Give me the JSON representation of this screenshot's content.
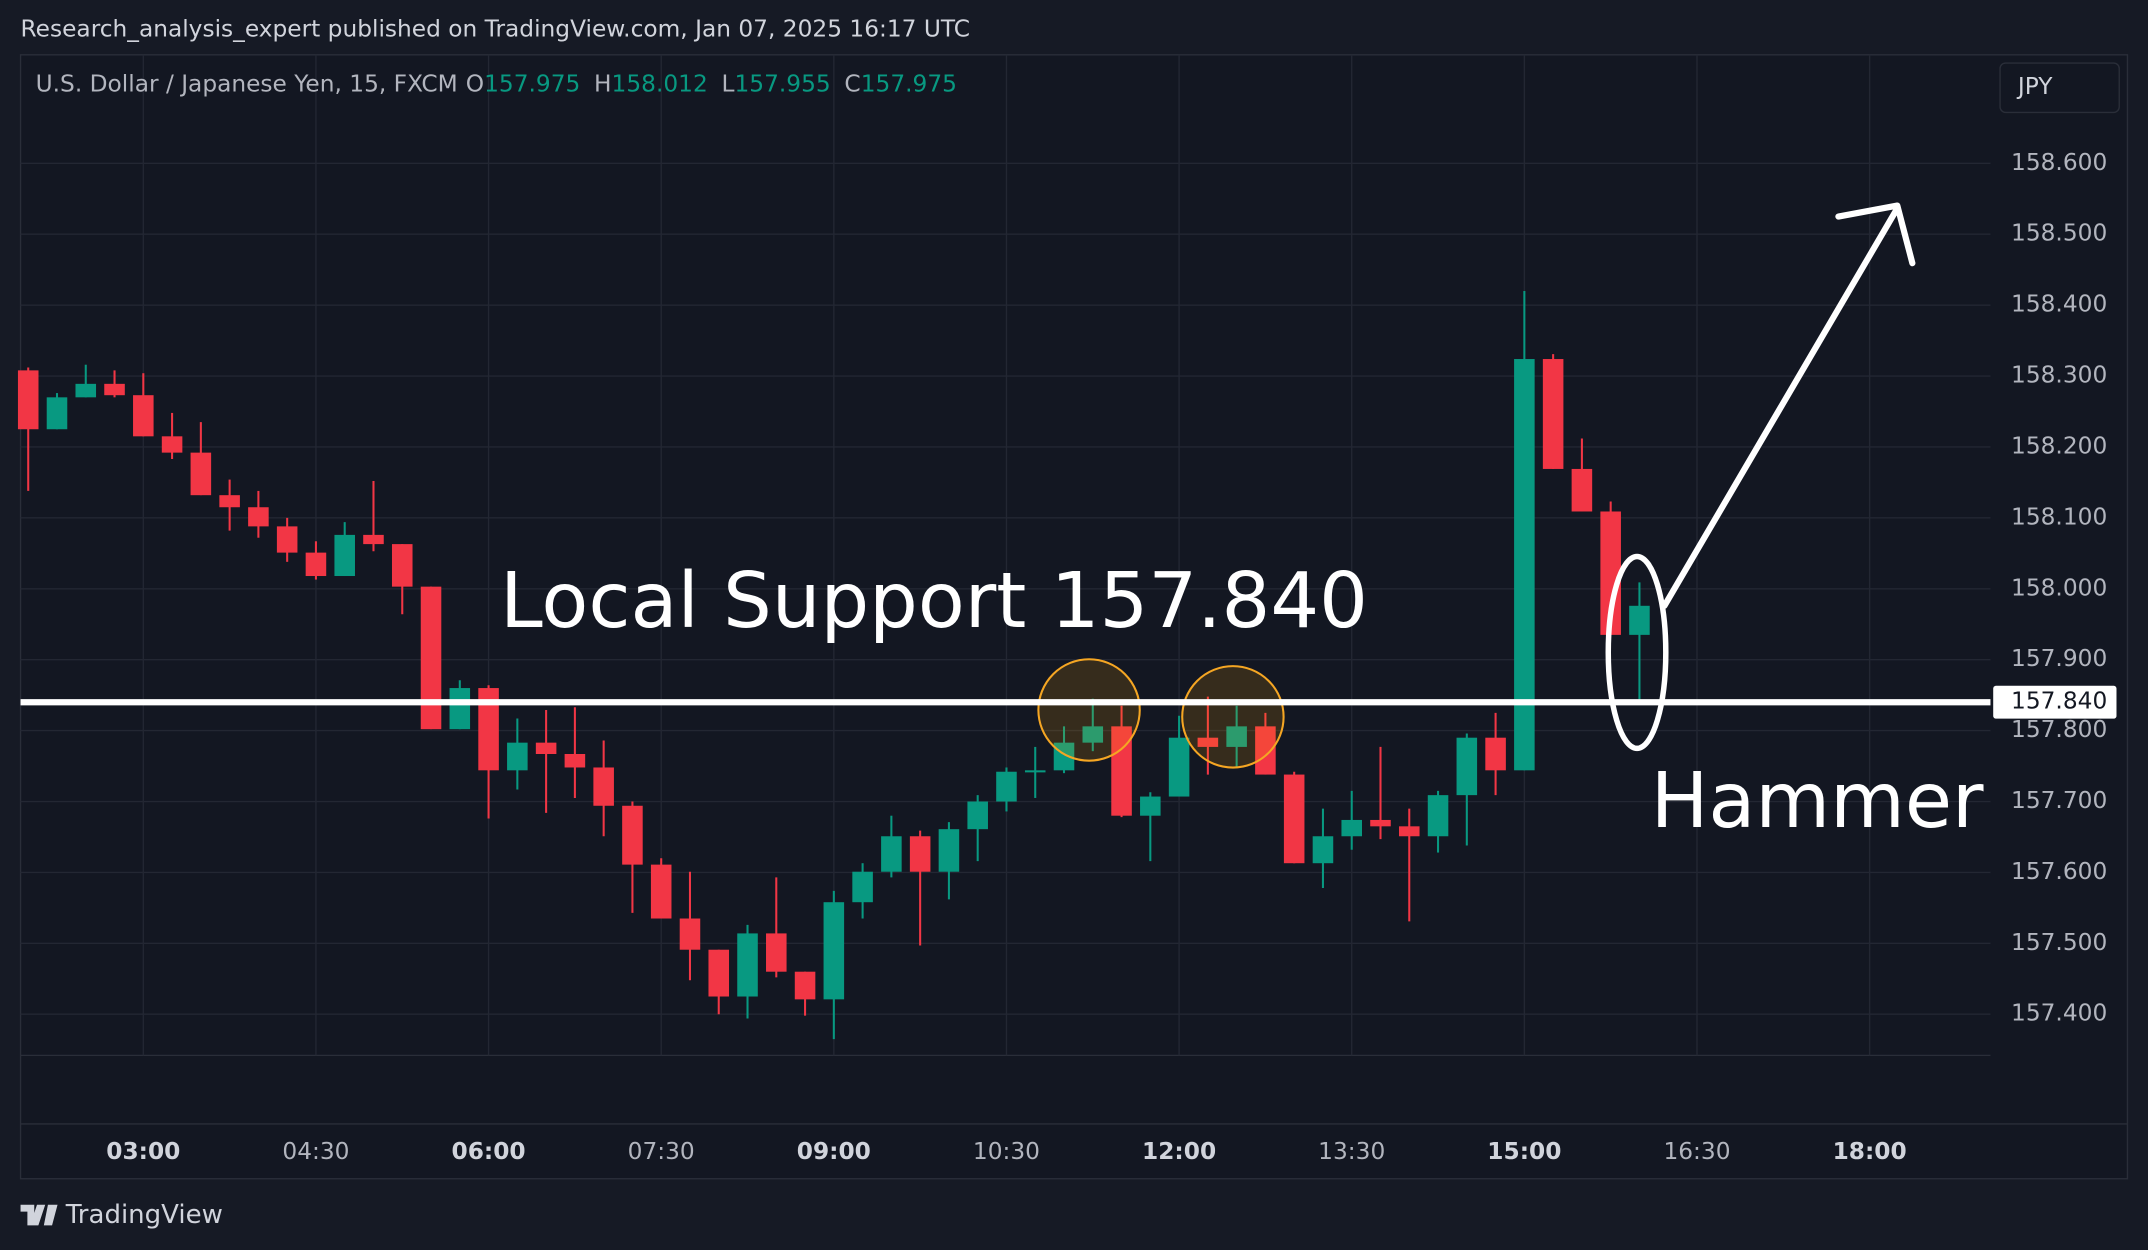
{
  "header": {
    "publisher": "Research_analysis_expert published on TradingView.com, Jan 07, 2025 16:17 UTC"
  },
  "footer": {
    "brand": "TradingView"
  },
  "chart_data": {
    "type": "candlestick",
    "symbol": "U.S. Dollar / Japanese Yen, 15, FXCM",
    "currency": "JPY",
    "ohlc_legend": [
      {
        "label": "O",
        "value": 157.975
      },
      {
        "label": "H",
        "value": 158.012
      },
      {
        "label": "L",
        "value": 157.955
      },
      {
        "label": "C",
        "value": 157.975
      }
    ],
    "up_color": "#089981",
    "down_color": "#f23645",
    "x": [
      120,
      135,
      150,
      165,
      180,
      195,
      210,
      225,
      240,
      255,
      270,
      285,
      300,
      315,
      330,
      345,
      360,
      375,
      390,
      405,
      420,
      435,
      450,
      465,
      480,
      495,
      510,
      525,
      540,
      555,
      570,
      585,
      600,
      615,
      630,
      645,
      660,
      675,
      690,
      705,
      720,
      735,
      750,
      765,
      780,
      795,
      810,
      825,
      840,
      855,
      870,
      885,
      900,
      915,
      930,
      945,
      960
    ],
    "open": [
      158.308,
      158.225,
      158.27,
      158.289,
      158.273,
      158.215,
      158.192,
      158.132,
      158.115,
      158.088,
      158.051,
      158.018,
      158.076,
      158.063,
      158.003,
      157.802,
      157.86,
      157.744,
      157.783,
      157.767,
      157.748,
      157.694,
      157.611,
      157.535,
      157.491,
      157.425,
      157.514,
      157.46,
      157.421,
      157.558,
      157.601,
      157.651,
      157.601,
      157.661,
      157.7,
      157.742,
      157.744,
      157.783,
      157.806,
      157.68,
      157.707,
      157.79,
      157.777,
      157.806,
      157.738,
      157.613,
      157.651,
      157.674,
      157.665,
      157.651,
      157.709,
      157.79,
      157.744,
      158.324,
      158.169,
      158.109,
      157.935
    ],
    "high": [
      158.312,
      158.276,
      158.316,
      158.308,
      158.304,
      158.248,
      158.235,
      158.154,
      158.138,
      158.1,
      158.067,
      158.094,
      158.152,
      158.063,
      158.003,
      157.871,
      157.864,
      157.817,
      157.829,
      157.833,
      157.786,
      157.7,
      157.62,
      157.601,
      157.491,
      157.526,
      157.593,
      157.46,
      157.574,
      157.613,
      157.68,
      157.659,
      157.671,
      157.709,
      157.748,
      157.777,
      157.806,
      157.845,
      157.835,
      157.713,
      157.821,
      157.848,
      157.835,
      157.825,
      157.742,
      157.69,
      157.715,
      157.777,
      157.69,
      157.715,
      157.796,
      157.825,
      158.42,
      158.331,
      158.212,
      158.123,
      158.009
    ],
    "low": [
      158.138,
      158.225,
      158.27,
      158.27,
      158.215,
      158.183,
      158.132,
      158.082,
      158.072,
      158.038,
      158.013,
      158.018,
      158.053,
      157.964,
      157.802,
      157.802,
      157.676,
      157.717,
      157.684,
      157.705,
      157.651,
      157.543,
      157.535,
      157.448,
      157.4,
      157.394,
      157.452,
      157.398,
      157.365,
      157.535,
      157.593,
      157.497,
      157.562,
      157.616,
      157.686,
      157.705,
      157.74,
      157.771,
      157.678,
      157.616,
      157.707,
      157.738,
      157.748,
      157.738,
      157.613,
      157.578,
      157.632,
      157.647,
      157.531,
      157.628,
      157.638,
      157.709,
      157.744,
      158.169,
      158.109,
      157.935,
      157.844
    ],
    "close": [
      158.225,
      158.27,
      158.289,
      158.273,
      158.215,
      158.192,
      158.132,
      158.115,
      158.088,
      158.051,
      158.018,
      158.076,
      158.063,
      158.003,
      157.802,
      157.86,
      157.744,
      157.783,
      157.767,
      157.748,
      157.694,
      157.611,
      157.535,
      157.491,
      157.425,
      157.514,
      157.46,
      157.421,
      157.558,
      157.601,
      157.651,
      157.601,
      157.661,
      157.7,
      157.742,
      157.744,
      157.783,
      157.806,
      157.68,
      157.707,
      157.79,
      157.777,
      157.806,
      157.738,
      157.613,
      157.651,
      157.674,
      157.665,
      157.651,
      157.709,
      157.79,
      157.744,
      158.324,
      158.169,
      158.109,
      157.935,
      157.976
    ],
    "xlim": [
      116,
      1143
    ],
    "ylim": [
      157.342,
      158.753
    ],
    "xticks": [
      {
        "value": 180,
        "label": "03:00"
      },
      {
        "value": 270,
        "label": "04:30"
      },
      {
        "value": 360,
        "label": "06:00"
      },
      {
        "value": 450,
        "label": "07:30"
      },
      {
        "value": 540,
        "label": "09:00"
      },
      {
        "value": 630,
        "label": "10:30"
      },
      {
        "value": 720,
        "label": "12:00"
      },
      {
        "value": 810,
        "label": "13:30"
      },
      {
        "value": 900,
        "label": "15:00"
      },
      {
        "value": 990,
        "label": "16:30"
      },
      {
        "value": 1080,
        "label": "18:00"
      }
    ],
    "yticks": [
      {
        "value": 157.4,
        "label": "157.400"
      },
      {
        "value": 157.5,
        "label": "157.500"
      },
      {
        "value": 157.6,
        "label": "157.600"
      },
      {
        "value": 157.7,
        "label": "157.700"
      },
      {
        "value": 157.8,
        "label": "157.800"
      },
      {
        "value": 157.9,
        "label": "157.900"
      },
      {
        "value": 158.0,
        "label": "158.000"
      },
      {
        "value": 158.1,
        "label": "158.100"
      },
      {
        "value": 158.2,
        "label": "158.200"
      },
      {
        "value": 158.3,
        "label": "158.300"
      },
      {
        "value": 158.4,
        "label": "158.400"
      },
      {
        "value": 158.5,
        "label": "158.500"
      },
      {
        "value": 158.6,
        "label": "158.600"
      }
    ],
    "grid": true,
    "support": {
      "value": 157.84,
      "label": "157.840"
    },
    "annotations": [
      "Local Support 157.840",
      "Hammer"
    ]
  }
}
